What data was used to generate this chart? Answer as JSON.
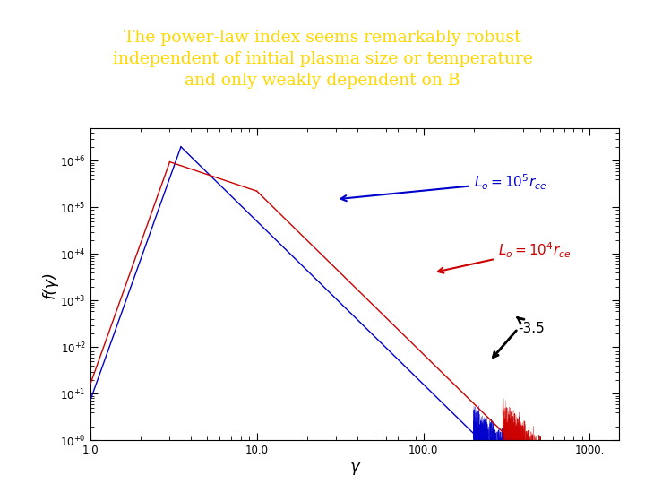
{
  "title_line1": "The power-law index seems remarkably robust",
  "title_line2": "independent of initial plasma size or temperature",
  "title_line3": "and only weakly dependent on B",
  "title_bg_color": "#0000AA",
  "title_text_color": "#FFD700",
  "xlabel": "γ",
  "ylabel": "f(γ)",
  "xlim_log": [
    0.0,
    3.176
  ],
  "ylim_log": [
    0.0,
    6.7
  ],
  "bg_color": "#ffffff",
  "blue_color": "#0000CC",
  "red_color": "#CC0000",
  "blue_peak_gamma": 3.5,
  "blue_peak_f": 2000000.0,
  "red_peak_gamma": 3.0,
  "red_peak_f": 950000.0,
  "noise_seed": 42
}
